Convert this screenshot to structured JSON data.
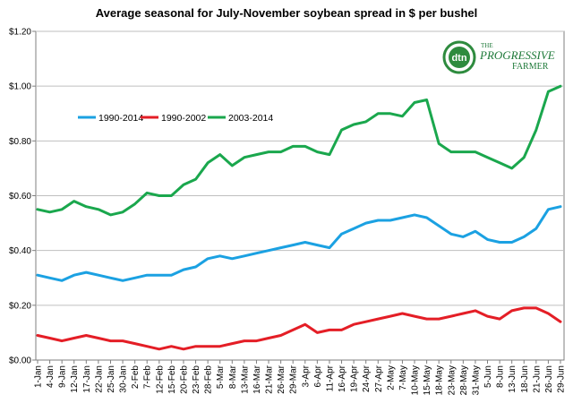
{
  "chart_data": {
    "type": "line",
    "title": "Average seasonal for July-November soybean spread in $ per bushel",
    "xlabel": "",
    "ylabel": "",
    "ylim": [
      0,
      1.2
    ],
    "yticks": [
      "$0.00",
      "$0.20",
      "$0.40",
      "$0.60",
      "$0.80",
      "$1.00",
      "$1.20"
    ],
    "ytick_values": [
      0,
      0.2,
      0.4,
      0.6,
      0.8,
      1.0,
      1.2
    ],
    "grid": true,
    "legend_position": "top-left",
    "x": [
      "1-Jan",
      "4-Jan",
      "9-Jan",
      "12-Jan",
      "17-Jan",
      "22-Jan",
      "25-Jan",
      "30-Jan",
      "2-Feb",
      "7-Feb",
      "12-Feb",
      "15-Feb",
      "20-Feb",
      "23-Feb",
      "28-Feb",
      "5-Mar",
      "8-Mar",
      "13-Mar",
      "16-Mar",
      "21-Mar",
      "26-Mar",
      "29-Mar",
      "3-Apr",
      "6-Apr",
      "11-Apr",
      "16-Apr",
      "19-Apr",
      "24-Apr",
      "27-Apr",
      "2-May",
      "7-May",
      "10-May",
      "15-May",
      "18-May",
      "23-May",
      "28-May",
      "31-May",
      "5-Jun",
      "8-Jun",
      "13-Jun",
      "18-Jun",
      "21-Jun",
      "26-Jun",
      "29-Jun"
    ],
    "series": [
      {
        "name": "1990-2014",
        "color": "#1ba1e2",
        "values": [
          0.31,
          0.3,
          0.29,
          0.31,
          0.32,
          0.31,
          0.3,
          0.29,
          0.3,
          0.31,
          0.31,
          0.31,
          0.33,
          0.34,
          0.37,
          0.38,
          0.37,
          0.38,
          0.39,
          0.4,
          0.41,
          0.42,
          0.43,
          0.42,
          0.41,
          0.46,
          0.48,
          0.5,
          0.51,
          0.51,
          0.52,
          0.53,
          0.52,
          0.49,
          0.46,
          0.45,
          0.47,
          0.44,
          0.43,
          0.43,
          0.45,
          0.48,
          0.55,
          0.56
        ]
      },
      {
        "name": "1990-2002",
        "color": "#e41e26",
        "values": [
          0.09,
          0.08,
          0.07,
          0.08,
          0.09,
          0.08,
          0.07,
          0.07,
          0.06,
          0.05,
          0.04,
          0.05,
          0.04,
          0.05,
          0.05,
          0.05,
          0.06,
          0.07,
          0.07,
          0.08,
          0.09,
          0.11,
          0.13,
          0.1,
          0.11,
          0.11,
          0.13,
          0.14,
          0.15,
          0.16,
          0.17,
          0.16,
          0.15,
          0.15,
          0.16,
          0.17,
          0.18,
          0.16,
          0.15,
          0.18,
          0.19,
          0.19,
          0.17,
          0.14
        ]
      },
      {
        "name": "2003-2014",
        "color": "#1aa74d",
        "values": [
          0.55,
          0.54,
          0.55,
          0.58,
          0.56,
          0.55,
          0.53,
          0.54,
          0.57,
          0.61,
          0.6,
          0.6,
          0.64,
          0.66,
          0.72,
          0.75,
          0.71,
          0.74,
          0.75,
          0.76,
          0.76,
          0.78,
          0.78,
          0.76,
          0.75,
          0.84,
          0.86,
          0.87,
          0.9,
          0.9,
          0.89,
          0.94,
          0.95,
          0.79,
          0.76,
          0.76,
          0.76,
          0.74,
          0.72,
          0.7,
          0.74,
          0.84,
          0.98,
          1.0
        ]
      }
    ]
  },
  "logo": {
    "mark": "dtn",
    "line1": "THE",
    "line2": "PROGRESSIVE",
    "line3": "FARMER"
  }
}
